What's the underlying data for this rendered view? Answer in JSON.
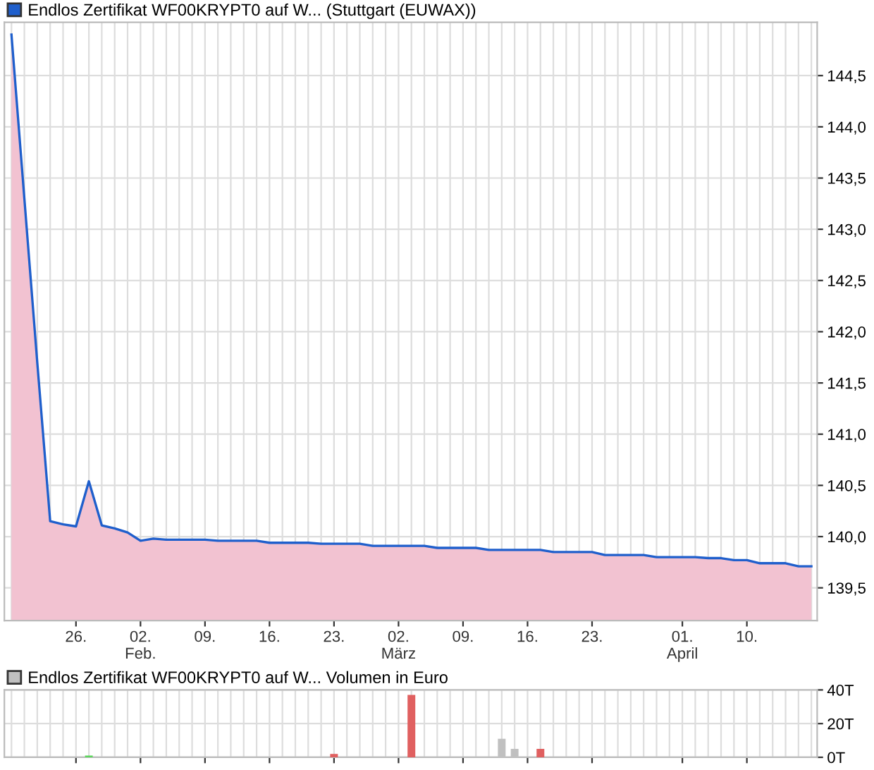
{
  "chart_data": [
    {
      "type": "area",
      "categories": [
        null,
        null,
        null,
        null,
        null,
        "26.",
        null,
        null,
        null,
        null,
        "02.\nFeb.",
        null,
        null,
        null,
        null,
        "09.",
        null,
        null,
        null,
        null,
        "16.",
        null,
        null,
        null,
        null,
        "23.",
        null,
        null,
        null,
        null,
        "02.\nMärz",
        null,
        null,
        null,
        null,
        "09.",
        null,
        null,
        null,
        null,
        "16.",
        null,
        null,
        null,
        null,
        "23.",
        null,
        null,
        null,
        null,
        null,
        null,
        "01.\nApril",
        null,
        null,
        null,
        null,
        "10.",
        null,
        null,
        null,
        null,
        null
      ],
      "series": [
        {
          "type": "area",
          "color": "#f2c2d1",
          "values": [
            144.9,
            143.3,
            141.7,
            140.15,
            140.12,
            140.1,
            140.54,
            140.11,
            140.08,
            140.04,
            139.96,
            139.98,
            139.97,
            139.97,
            139.97,
            139.97,
            139.96,
            139.96,
            139.96,
            139.96,
            139.94,
            139.94,
            139.94,
            139.94,
            139.93,
            139.93,
            139.93,
            139.93,
            139.91,
            139.91,
            139.91,
            139.91,
            139.91,
            139.89,
            139.89,
            139.89,
            139.89,
            139.87,
            139.87,
            139.87,
            139.87,
            139.87,
            139.85,
            139.85,
            139.85,
            139.85,
            139.82,
            139.82,
            139.82,
            139.82,
            139.8,
            139.8,
            139.8,
            139.8,
            139.79,
            139.79,
            139.77,
            139.77,
            139.74,
            139.74,
            139.74,
            139.71,
            139.71
          ]
        },
        {
          "type": "line",
          "name": "Endlos Zertifikat WF00KRYPT0 auf W... (Stuttgart (EUWAX))",
          "color": "#1f5fcc",
          "values": [
            144.9,
            143.3,
            141.7,
            140.15,
            140.12,
            140.1,
            140.54,
            140.11,
            140.08,
            140.04,
            139.96,
            139.98,
            139.97,
            139.97,
            139.97,
            139.97,
            139.96,
            139.96,
            139.96,
            139.96,
            139.94,
            139.94,
            139.94,
            139.94,
            139.93,
            139.93,
            139.93,
            139.93,
            139.91,
            139.91,
            139.91,
            139.91,
            139.91,
            139.89,
            139.89,
            139.89,
            139.89,
            139.87,
            139.87,
            139.87,
            139.87,
            139.87,
            139.85,
            139.85,
            139.85,
            139.85,
            139.82,
            139.82,
            139.82,
            139.82,
            139.8,
            139.8,
            139.8,
            139.8,
            139.79,
            139.79,
            139.77,
            139.77,
            139.74,
            139.74,
            139.74,
            139.71,
            139.71
          ]
        }
      ],
      "ylim": [
        139.18,
        145.02
      ],
      "yticks": [
        {
          "value": 139.5,
          "label": "139,5"
        },
        {
          "value": 140.0,
          "label": "140,0"
        },
        {
          "value": 140.5,
          "label": "140,5"
        },
        {
          "value": 141.0,
          "label": "141,0"
        },
        {
          "value": 141.5,
          "label": "141,5"
        },
        {
          "value": 142.0,
          "label": "142,0"
        },
        {
          "value": 142.5,
          "label": "142,5"
        },
        {
          "value": 143.0,
          "label": "143,0"
        },
        {
          "value": 143.5,
          "label": "143,5"
        },
        {
          "value": 144.0,
          "label": "144,0"
        },
        {
          "value": 144.5,
          "label": "144,5"
        }
      ],
      "grid": true,
      "legend": "top left"
    },
    {
      "type": "bar",
      "categories": [
        null,
        null,
        null,
        null,
        null,
        null,
        null,
        null,
        null,
        null,
        null,
        null,
        null,
        null,
        null,
        null,
        null,
        null,
        null,
        null,
        null,
        null,
        null,
        null,
        null,
        null,
        null,
        null,
        null,
        null,
        null,
        null,
        null,
        null,
        null,
        null,
        null,
        null,
        null,
        null,
        null,
        null,
        null,
        null,
        null,
        null,
        null,
        null,
        null,
        null,
        null,
        null,
        null,
        null,
        null,
        null,
        null,
        null,
        null,
        null,
        null,
        null,
        null
      ],
      "series": [
        {
          "name": "Endlos Zertifikat WF00KRYPT0 auf W... Volumen in Euro",
          "color": "#c0c0c0",
          "values": [
            null,
            null,
            null,
            null,
            null,
            null,
            1,
            null,
            null,
            null,
            null,
            null,
            null,
            null,
            null,
            null,
            null,
            null,
            null,
            null,
            null,
            null,
            null,
            null,
            null,
            2,
            null,
            null,
            null,
            null,
            null,
            37,
            null,
            null,
            null,
            null,
            null,
            null,
            11,
            5,
            null,
            5,
            null,
            null,
            null,
            null,
            null,
            null,
            null,
            null,
            null,
            null,
            null,
            null,
            null,
            null,
            null,
            null,
            null,
            null,
            null,
            null,
            null
          ],
          "colors": [
            "#c0c0c0",
            "#c0c0c0",
            "#c0c0c0",
            "#c0c0c0",
            "#c0c0c0",
            "#c0c0c0",
            "#5cd65c",
            "#c0c0c0",
            "#c0c0c0",
            "#c0c0c0",
            "#c0c0c0",
            "#c0c0c0",
            "#c0c0c0",
            "#c0c0c0",
            "#c0c0c0",
            "#c0c0c0",
            "#c0c0c0",
            "#c0c0c0",
            "#c0c0c0",
            "#c0c0c0",
            "#c0c0c0",
            "#c0c0c0",
            "#c0c0c0",
            "#c0c0c0",
            "#c0c0c0",
            "#e06060",
            "#c0c0c0",
            "#c0c0c0",
            "#c0c0c0",
            "#c0c0c0",
            "#c0c0c0",
            "#e06060",
            "#c0c0c0",
            "#c0c0c0",
            "#c0c0c0",
            "#c0c0c0",
            "#c0c0c0",
            "#c0c0c0",
            "#c0c0c0",
            "#c0c0c0",
            "#c0c0c0",
            "#e06060",
            "#c0c0c0",
            "#c0c0c0",
            "#c0c0c0",
            "#c0c0c0",
            "#c0c0c0",
            "#c0c0c0",
            "#c0c0c0",
            "#c0c0c0",
            "#c0c0c0",
            "#c0c0c0",
            "#c0c0c0",
            "#c0c0c0",
            "#c0c0c0",
            "#c0c0c0",
            "#c0c0c0",
            "#c0c0c0",
            "#c0c0c0",
            "#c0c0c0",
            "#c0c0c0",
            "#c0c0c0",
            "#c0c0c0"
          ]
        }
      ],
      "ylim": [
        0,
        40
      ],
      "yticks": [
        {
          "value": 0,
          "label": "0T"
        },
        {
          "value": 20,
          "label": "20T"
        },
        {
          "value": 40,
          "label": "40T"
        }
      ],
      "grid": true,
      "legend": "top left",
      "tick_labels": "y"
    }
  ]
}
